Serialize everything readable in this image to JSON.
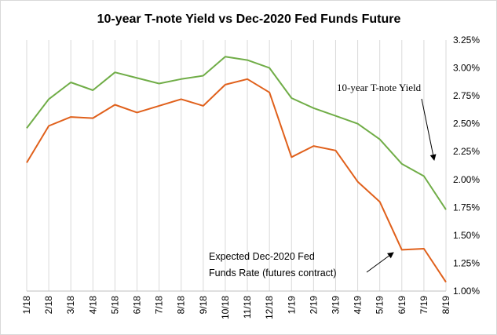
{
  "chart_data": {
    "type": "line",
    "title": "10-year T-note Yield vs Dec-2020 Fed Funds Future",
    "xlabel": "",
    "ylabel": "",
    "categories": [
      "1/18",
      "2/18",
      "3/18",
      "4/18",
      "5/18",
      "6/18",
      "7/18",
      "8/18",
      "9/18",
      "10/18",
      "11/18",
      "12/18",
      "1/19",
      "2/19",
      "3/19",
      "4/19",
      "5/19",
      "6/19",
      "7/19",
      "8/19"
    ],
    "ylim": [
      1.0,
      3.25
    ],
    "y_ticks": [
      "1.00%",
      "1.25%",
      "1.50%",
      "1.75%",
      "2.00%",
      "2.25%",
      "2.50%",
      "2.75%",
      "3.00%",
      "3.25%"
    ],
    "y_tick_values": [
      1.0,
      1.25,
      1.5,
      1.75,
      2.0,
      2.25,
      2.5,
      2.75,
      3.0,
      3.25
    ],
    "grid": "vertical",
    "series": [
      {
        "name": "10-year T-note Yield",
        "color": "#70ad47",
        "values": [
          2.46,
          2.72,
          2.87,
          2.8,
          2.96,
          2.91,
          2.86,
          2.9,
          2.93,
          3.1,
          3.07,
          3.0,
          2.73,
          2.64,
          2.57,
          2.5,
          2.36,
          2.14,
          2.03,
          1.73
        ]
      },
      {
        "name": "Expected Dec-2020 Fed Funds Rate (futures contract)",
        "color": "#e0601b",
        "values": [
          2.15,
          2.48,
          2.56,
          2.55,
          2.67,
          2.6,
          2.66,
          2.72,
          2.66,
          2.85,
          2.9,
          2.78,
          2.2,
          2.3,
          2.26,
          1.98,
          1.8,
          1.37,
          1.38,
          1.08
        ]
      }
    ],
    "annotations": [
      {
        "text": "10-year T-note Yield"
      },
      {
        "line1": "Expected Dec-2020 Fed",
        "line2": "Funds Rate (futures contract)"
      }
    ]
  }
}
